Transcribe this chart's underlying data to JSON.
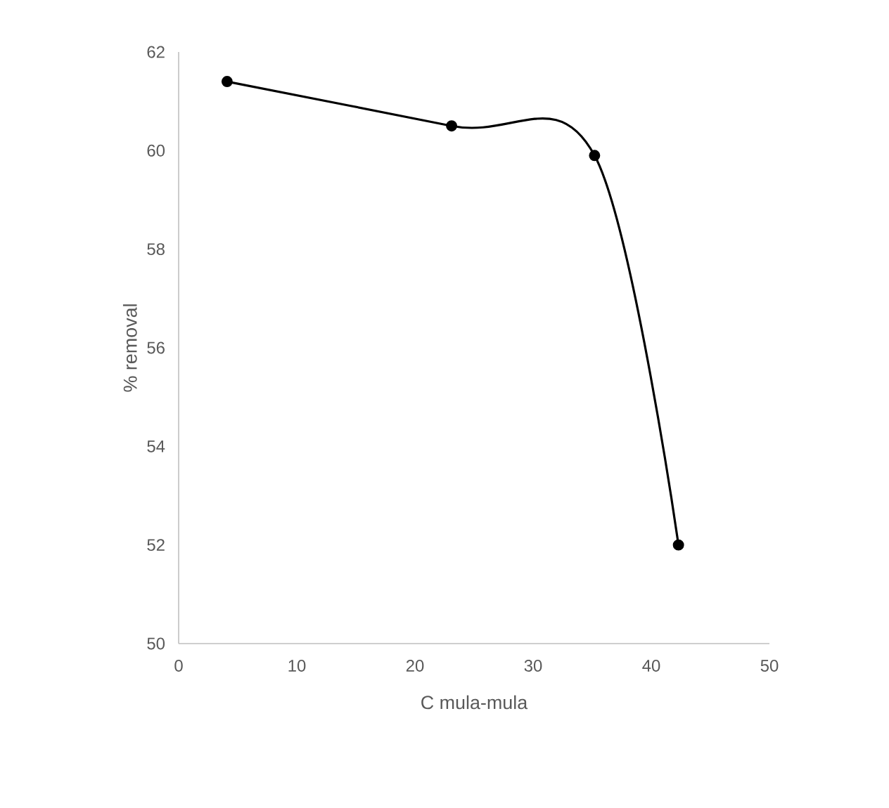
{
  "chart_data": {
    "type": "line",
    "xlabel": "C mula-mula",
    "ylabel": "% removal",
    "x": [
      4.1,
      23.1,
      35.2,
      42.3
    ],
    "series": [
      {
        "color": "#000000",
        "values": [
          61.4,
          60.5,
          59.9,
          52.0
        ]
      }
    ],
    "xlim": [
      0,
      50
    ],
    "xticks": [
      0,
      10,
      20,
      30,
      40,
      50
    ],
    "ylim": [
      50,
      62
    ],
    "yticks": [
      50,
      52,
      54,
      56,
      58,
      60,
      62
    ],
    "grid": false,
    "marker": "circle",
    "line_style": "solid"
  }
}
